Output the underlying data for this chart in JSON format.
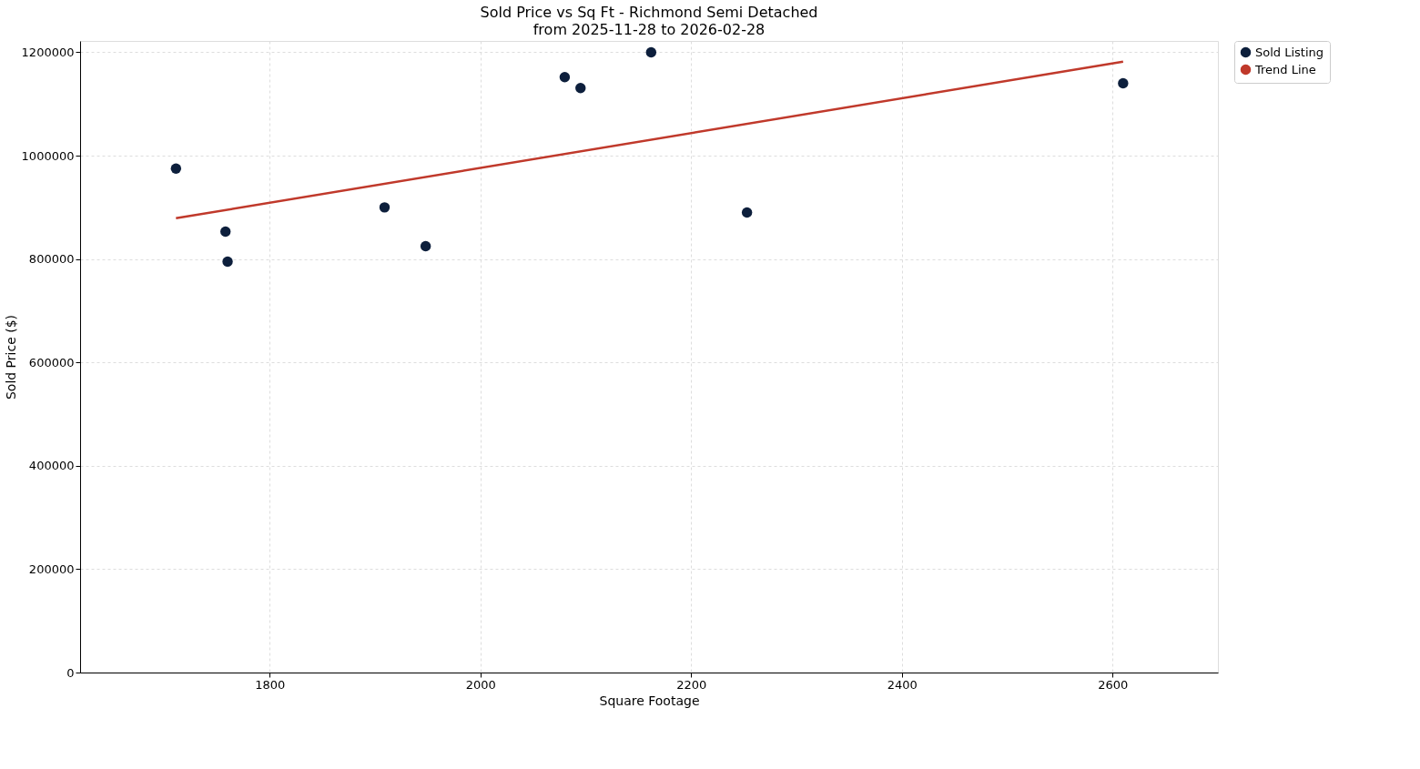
{
  "chart_data": {
    "type": "scatter",
    "title": "Sold Price vs Sq Ft - Richmond Semi Detached",
    "subtitle": "from 2025-11-28 to 2026-02-28",
    "xlabel": "Square Footage",
    "ylabel": "Sold Price ($)",
    "xlim": [
      1620,
      2700
    ],
    "xticks": [
      1800,
      2000,
      2200,
      2400,
      2600
    ],
    "ylim": [
      0,
      1222000
    ],
    "yticks": [
      0,
      200000,
      400000,
      600000,
      800000,
      1000000,
      1200000
    ],
    "grid": true,
    "legend": "top right",
    "series": [
      {
        "name": "Sold Listing",
        "marker": "circle",
        "color": "#0d1f3c",
        "x": [
          1711,
          1758,
          1760,
          1909,
          1948,
          2080,
          2095,
          2162,
          2253,
          2610
        ],
        "values": [
          975000,
          853000,
          795000,
          900000,
          825000,
          1152000,
          1131000,
          1200000,
          890000,
          1140000
        ]
      },
      {
        "name": "Trend Line",
        "type": "line",
        "color": "#c0392b",
        "line_style": "solid",
        "x": [
          1711,
          2610
        ],
        "values": [
          879000,
          1182000
        ]
      }
    ]
  }
}
